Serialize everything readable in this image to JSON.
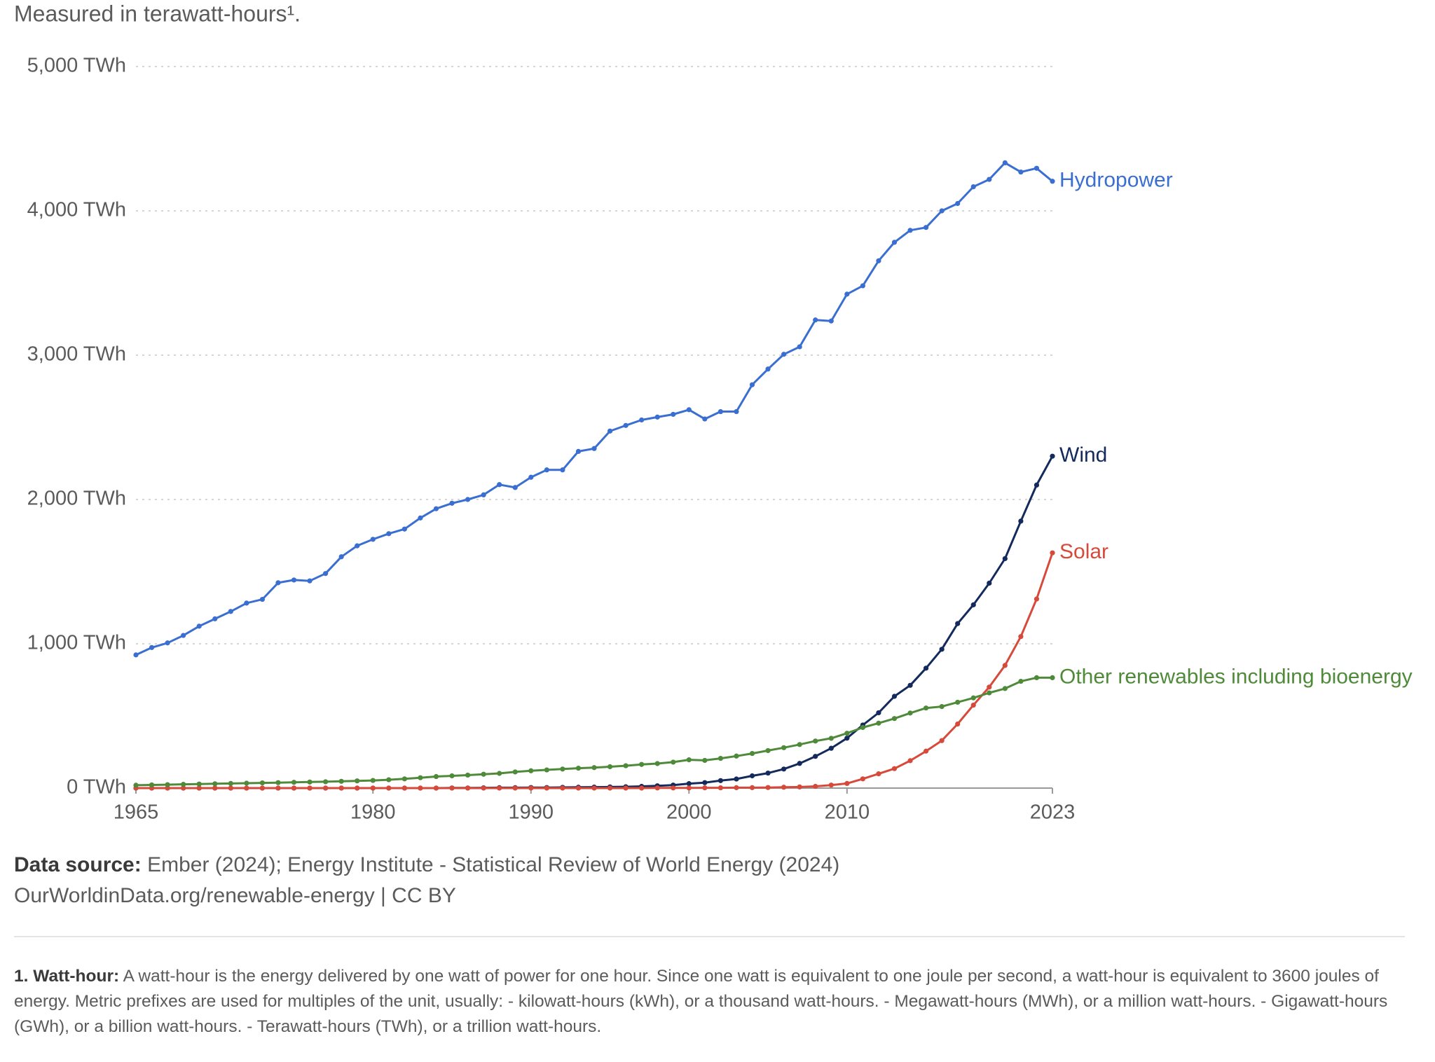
{
  "chart_data": {
    "type": "line",
    "subtitle": "Measured in terawatt-hours¹.",
    "x": [
      1965,
      1966,
      1967,
      1968,
      1969,
      1970,
      1971,
      1972,
      1973,
      1974,
      1975,
      1976,
      1977,
      1978,
      1979,
      1980,
      1981,
      1982,
      1983,
      1984,
      1985,
      1986,
      1987,
      1988,
      1989,
      1990,
      1991,
      1992,
      1993,
      1994,
      1995,
      1996,
      1997,
      1998,
      1999,
      2000,
      2001,
      2002,
      2003,
      2004,
      2005,
      2006,
      2007,
      2008,
      2009,
      2010,
      2011,
      2012,
      2013,
      2014,
      2015,
      2016,
      2017,
      2018,
      2019,
      2020,
      2021,
      2022,
      2023
    ],
    "series": [
      {
        "name": "Hydropower",
        "color": "#3a6fd1",
        "values": [
          923,
          974,
          1006,
          1058,
          1122,
          1173,
          1224,
          1282,
          1308,
          1423,
          1442,
          1436,
          1487,
          1603,
          1679,
          1724,
          1763,
          1795,
          1872,
          1936,
          1974,
          2000,
          2032,
          2103,
          2083,
          2154,
          2205,
          2205,
          2333,
          2353,
          2474,
          2513,
          2551,
          2571,
          2590,
          2622,
          2558,
          2609,
          2609,
          2795,
          2904,
          3006,
          3058,
          3244,
          3237,
          3423,
          3481,
          3654,
          3782,
          3865,
          3885,
          4000,
          4051,
          4167,
          4218,
          4333,
          4269,
          4295,
          4205
        ]
      },
      {
        "name": "Wind",
        "color": "#142a5c",
        "values": [
          0,
          0,
          0,
          0,
          0,
          0,
          0,
          0,
          0,
          0,
          0,
          0,
          0,
          0,
          0,
          0,
          0,
          0,
          0,
          0,
          1,
          1,
          2,
          3,
          3,
          4,
          4,
          5,
          6,
          7,
          8,
          9,
          12,
          16,
          21,
          31,
          38,
          52,
          63,
          85,
          104,
          132,
          171,
          220,
          276,
          346,
          437,
          522,
          636,
          712,
          831,
          962,
          1140,
          1270,
          1420,
          1590,
          1850,
          2100,
          2300
        ]
      },
      {
        "name": "Solar",
        "color": "#d64a3b",
        "values": [
          0,
          0,
          0,
          0,
          0,
          0,
          0,
          0,
          0,
          0,
          0,
          0,
          0,
          0,
          0,
          0,
          0,
          0,
          0,
          0,
          0,
          0,
          0,
          0,
          0,
          0,
          0,
          0,
          0,
          0,
          0,
          0,
          0,
          1,
          1,
          1,
          2,
          2,
          3,
          3,
          4,
          6,
          8,
          12,
          21,
          32,
          64,
          99,
          135,
          190,
          256,
          329,
          444,
          575,
          700,
          850,
          1050,
          1310,
          1630
        ]
      },
      {
        "name": "Other renewables including bioenergy",
        "color": "#4f8a3a",
        "values": [
          20,
          22,
          24,
          26,
          28,
          30,
          32,
          34,
          36,
          38,
          40,
          42,
          44,
          47,
          50,
          53,
          58,
          64,
          72,
          80,
          85,
          90,
          96,
          102,
          112,
          120,
          126,
          132,
          138,
          142,
          148,
          155,
          164,
          170,
          180,
          196,
          192,
          206,
          222,
          240,
          260,
          280,
          302,
          326,
          345,
          380,
          420,
          450,
          482,
          520,
          555,
          565,
          595,
          625,
          660,
          690,
          740,
          765,
          765
        ]
      }
    ],
    "xlim": [
      1965,
      2023
    ],
    "xticks": [
      1965,
      1980,
      1990,
      2000,
      2010,
      2023
    ],
    "ylim": [
      0,
      5000
    ],
    "yticks": [
      {
        "value": 0,
        "label": "0 TWh"
      },
      {
        "value": 1000,
        "label": "1,000 TWh"
      },
      {
        "value": 2000,
        "label": "2,000 TWh"
      },
      {
        "value": 3000,
        "label": "3,000 TWh"
      },
      {
        "value": 4000,
        "label": "4,000 TWh"
      },
      {
        "value": 5000,
        "label": "5,000 TWh"
      }
    ],
    "grid": true,
    "source": {
      "label": "Data source:",
      "text": "Ember (2024); Energy Institute - Statistical Review of World Energy (2024)"
    },
    "url": "OurWorldinData.org/renewable-energy | CC BY",
    "footnote": {
      "label": "1. Watt-hour:",
      "text": "A watt-hour is the energy delivered by one watt of power for one hour. Since one watt is equivalent to one joule per second, a watt-hour is equivalent to 3600 joules of energy. Metric prefixes are used for multiples of the unit, usually: - kilowatt-hours (kWh), or a thousand watt-hours. - Megawatt-hours (MWh), or a million watt-hours. - Gigawatt-hours (GWh), or a billion watt-hours. - Terawatt-hours (TWh), or a trillion watt-hours."
    }
  }
}
